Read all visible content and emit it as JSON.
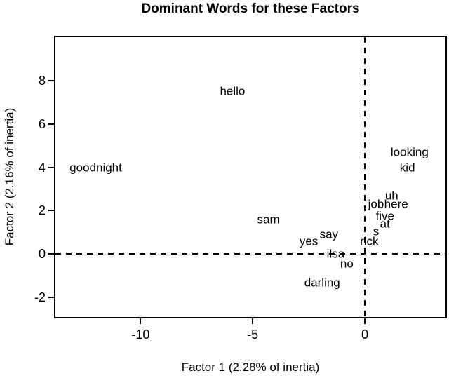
{
  "chart_data": {
    "type": "scatter",
    "subtype": "text-labels",
    "title": "Dominant Words for these Factors",
    "xlabel": "Factor 1 (2.28% of inertia)",
    "ylabel": "Factor 2 (2.16% of inertia)",
    "xlim": [
      -13.8,
      3.6
    ],
    "ylim": [
      -2.9,
      10.0
    ],
    "xticks": [
      -10,
      -5,
      0
    ],
    "yticks": [
      -2,
      0,
      2,
      4,
      6,
      8
    ],
    "grid": false,
    "reference_lines": {
      "x": 0,
      "y": 0,
      "style": "dashed"
    },
    "points": [
      {
        "label": "goodnight",
        "x": -12.0,
        "y": 4.0
      },
      {
        "label": "hello",
        "x": -5.9,
        "y": 7.5
      },
      {
        "label": "sam",
        "x": -4.3,
        "y": 1.6
      },
      {
        "label": "yes",
        "x": -2.5,
        "y": 0.6
      },
      {
        "label": "say",
        "x": -1.6,
        "y": 0.9
      },
      {
        "label": "ilsa",
        "x": -1.3,
        "y": 0.0
      },
      {
        "label": "no",
        "x": -0.8,
        "y": -0.45
      },
      {
        "label": "darling",
        "x": -1.9,
        "y": -1.3
      },
      {
        "label": "rick",
        "x": 0.2,
        "y": 0.6
      },
      {
        "label": "s",
        "x": 0.5,
        "y": 1.05
      },
      {
        "label": "at",
        "x": 0.9,
        "y": 1.4
      },
      {
        "label": "five",
        "x": 0.9,
        "y": 1.75
      },
      {
        "label": "job",
        "x": 0.5,
        "y": 2.3
      },
      {
        "label": "here",
        "x": 1.4,
        "y": 2.3
      },
      {
        "label": "uh",
        "x": 1.2,
        "y": 2.7
      },
      {
        "label": "kid",
        "x": 1.9,
        "y": 4.0
      },
      {
        "label": "looking",
        "x": 2.0,
        "y": 4.7
      }
    ],
    "colors": {
      "foreground": "#000000",
      "background": "#ffffff"
    }
  }
}
